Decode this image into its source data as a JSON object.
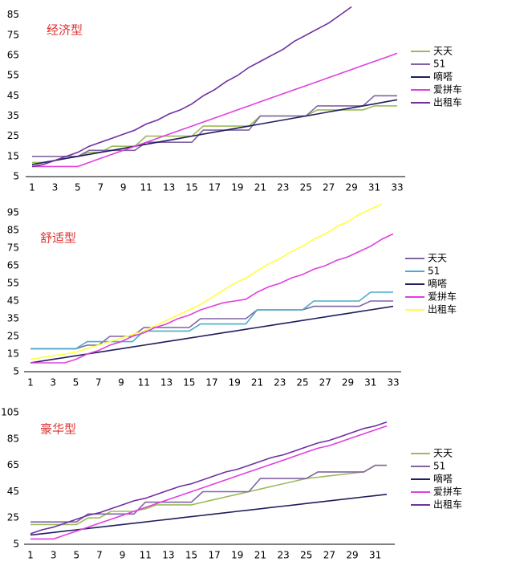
{
  "chart_data": [
    {
      "type": "line",
      "title": "经济型",
      "categories": [
        1,
        null,
        3,
        null,
        5,
        null,
        7,
        null,
        9,
        null,
        11,
        null,
        13,
        null,
        15,
        null,
        17,
        null,
        19,
        null,
        21,
        null,
        23,
        null,
        25,
        null,
        27,
        null,
        29,
        null,
        31,
        null,
        33
      ],
      "ylim": [
        5,
        90
      ],
      "yticks": [
        5,
        15,
        25,
        35,
        45,
        55,
        65,
        75,
        85
      ],
      "series": [
        {
          "name": "天天",
          "color": "#9bbb59",
          "values": [
            12,
            12,
            13,
            15,
            15,
            17,
            17,
            20,
            20,
            20,
            25,
            25,
            25,
            25,
            25,
            30,
            30,
            30,
            30,
            30,
            35,
            35,
            35,
            35,
            35,
            38,
            38,
            38,
            38,
            38,
            40,
            40,
            40
          ]
        },
        {
          "name": "51",
          "color": "#8064a2",
          "values": [
            15,
            15,
            15,
            15,
            15,
            18,
            18,
            18,
            18,
            18,
            22,
            22,
            22,
            22,
            22,
            28,
            28,
            28,
            28,
            28,
            35,
            35,
            35,
            35,
            35,
            40,
            40,
            40,
            40,
            40,
            45,
            45,
            45
          ]
        },
        {
          "name": "嘀嗒",
          "color": "#1f1f5f",
          "values": [
            11,
            12,
            13,
            14,
            15,
            16,
            17,
            18,
            19,
            20,
            21,
            22,
            23,
            24,
            25,
            26,
            27,
            28,
            29,
            30,
            31,
            32,
            33,
            34,
            35,
            36,
            37,
            38,
            39,
            40,
            41,
            42,
            43
          ]
        },
        {
          "name": "爱拼车",
          "color": "#e040e0",
          "values": [
            10,
            10,
            10,
            10,
            10,
            12,
            14,
            16,
            18,
            20,
            22,
            24,
            26,
            28,
            30,
            32,
            34,
            36,
            38,
            40,
            42,
            44,
            46,
            48,
            50,
            52,
            54,
            56,
            58,
            60,
            62,
            64,
            66
          ]
        },
        {
          "name": "出租车",
          "color": "#7030a0",
          "values": [
            10,
            11,
            13,
            15,
            17,
            20,
            22,
            24,
            26,
            28,
            31,
            33,
            36,
            38,
            41,
            45,
            48,
            52,
            55,
            59,
            62,
            65,
            68,
            72,
            75,
            78,
            81,
            85,
            89,
            null,
            null,
            null,
            null
          ]
        }
      ]
    },
    {
      "type": "line",
      "title": "舒适型",
      "categories": [
        1,
        null,
        3,
        null,
        5,
        null,
        7,
        null,
        9,
        null,
        11,
        null,
        13,
        null,
        15,
        null,
        17,
        null,
        19,
        null,
        21,
        null,
        23,
        null,
        25,
        null,
        27,
        null,
        29,
        null,
        31,
        null,
        33
      ],
      "ylim": [
        5,
        100
      ],
      "yticks": [
        5,
        15,
        25,
        35,
        45,
        55,
        65,
        75,
        85,
        95
      ],
      "series": [
        {
          "name": "天天",
          "color": "#8064a2",
          "values": [
            18,
            18,
            18,
            18,
            18,
            20,
            20,
            25,
            25,
            25,
            30,
            30,
            30,
            30,
            30,
            35,
            35,
            35,
            35,
            35,
            40,
            40,
            40,
            40,
            40,
            42,
            42,
            42,
            42,
            42,
            45,
            45,
            45
          ]
        },
        {
          "name": "51",
          "color": "#4bacc6",
          "values": [
            18,
            18,
            18,
            18,
            18,
            22,
            22,
            22,
            22,
            22,
            28,
            28,
            28,
            28,
            28,
            32,
            32,
            32,
            32,
            32,
            40,
            40,
            40,
            40,
            40,
            45,
            45,
            45,
            45,
            45,
            50,
            50,
            50
          ]
        },
        {
          "name": "嘀嗒",
          "color": "#1f1f5f",
          "values": [
            10,
            11,
            12,
            13,
            14,
            15,
            16,
            17,
            18,
            19,
            20,
            21,
            22,
            23,
            24,
            25,
            26,
            27,
            28,
            29,
            30,
            31,
            32,
            33,
            34,
            35,
            36,
            37,
            38,
            39,
            40,
            41,
            42
          ]
        },
        {
          "name": "爱拼车",
          "color": "#e040e0",
          "values": [
            10,
            10,
            10,
            10,
            12,
            15,
            17,
            20,
            22,
            25,
            27,
            30,
            32,
            35,
            37,
            40,
            42,
            44,
            45,
            46,
            50,
            53,
            55,
            58,
            60,
            63,
            65,
            68,
            70,
            73,
            76,
            80,
            83
          ]
        },
        {
          "name": "出租车",
          "color": "#ffff40",
          "values": [
            12,
            13,
            14,
            15,
            16,
            18,
            20,
            22,
            24,
            26,
            28,
            31,
            34,
            37,
            40,
            43,
            47,
            51,
            55,
            58,
            62,
            66,
            69,
            73,
            76,
            80,
            83,
            87,
            90,
            94,
            97,
            100,
            null
          ]
        }
      ]
    },
    {
      "type": "line",
      "title": "豪华型",
      "categories": [
        1,
        null,
        3,
        null,
        5,
        null,
        7,
        null,
        9,
        null,
        11,
        null,
        13,
        null,
        15,
        null,
        17,
        null,
        19,
        null,
        21,
        null,
        23,
        null,
        25,
        null,
        27,
        null,
        29,
        null,
        31,
        null
      ],
      "ylim": [
        5,
        110
      ],
      "yticks": [
        5,
        25,
        45,
        65,
        85,
        105
      ],
      "series": [
        {
          "name": "天天",
          "color": "#9bbb59",
          "values": [
            20,
            20,
            20,
            20,
            20,
            25,
            25,
            30,
            30,
            30,
            32,
            35,
            35,
            35,
            35,
            37,
            39,
            41,
            43,
            45,
            47,
            49,
            51,
            53,
            55,
            56,
            57,
            58,
            59,
            60,
            65,
            65
          ]
        },
        {
          "name": "51",
          "color": "#8064a2",
          "values": [
            22,
            22,
            22,
            22,
            22,
            28,
            28,
            28,
            28,
            28,
            37,
            37,
            37,
            37,
            37,
            45,
            45,
            45,
            45,
            45,
            55,
            55,
            55,
            55,
            55,
            60,
            60,
            60,
            60,
            60,
            65,
            65
          ]
        },
        {
          "name": "嘀嗒",
          "color": "#1f1f5f",
          "values": [
            12,
            13,
            14,
            15,
            16,
            17,
            18,
            19,
            20,
            21,
            22,
            23,
            24,
            25,
            26,
            27,
            28,
            29,
            30,
            31,
            32,
            33,
            34,
            35,
            36,
            37,
            38,
            39,
            40,
            41,
            42,
            43
          ]
        },
        {
          "name": "爱拼车",
          "color": "#e040e0",
          "values": [
            9,
            9,
            9,
            12,
            15,
            18,
            21,
            24,
            27,
            30,
            33,
            36,
            39,
            42,
            45,
            48,
            51,
            54,
            57,
            60,
            63,
            66,
            69,
            72,
            75,
            78,
            80,
            83,
            86,
            89,
            92,
            95
          ]
        },
        {
          "name": "出租车",
          "color": "#7030a0",
          "values": [
            13,
            16,
            18,
            21,
            24,
            27,
            29,
            32,
            35,
            38,
            40,
            43,
            46,
            49,
            51,
            54,
            57,
            60,
            62,
            65,
            68,
            71,
            73,
            76,
            79,
            82,
            84,
            87,
            90,
            93,
            95,
            98
          ]
        }
      ]
    }
  ]
}
